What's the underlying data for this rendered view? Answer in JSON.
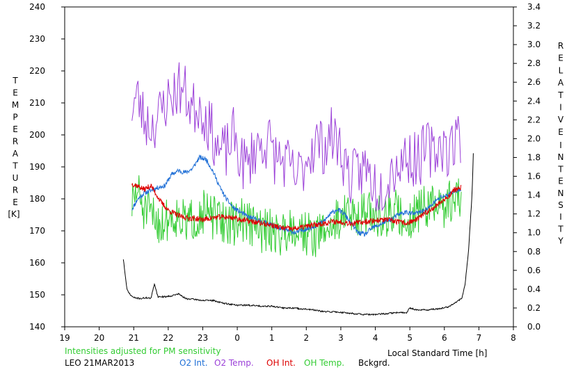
{
  "chart_data": {
    "type": "line",
    "x_axis": {
      "label": "Local Standard Time [h]",
      "tick_labels": [
        "19",
        "20",
        "21",
        "22",
        "23",
        "0",
        "1",
        "2",
        "3",
        "4",
        "5",
        "6",
        "7",
        "8"
      ],
      "range_hours": [
        19,
        32
      ]
    },
    "y_left": {
      "label_letters": [
        "T",
        "E",
        "M",
        "P",
        "E",
        "R",
        "A",
        "T",
        "U",
        "R",
        "E"
      ],
      "unit": "[K]",
      "range": [
        140,
        240
      ],
      "ticks": [
        "140",
        "150",
        "160",
        "170",
        "180",
        "190",
        "200",
        "210",
        "220",
        "230",
        "240"
      ]
    },
    "y_right": {
      "label_letters_1": [
        "R",
        "E",
        "L",
        "A",
        "T",
        "I",
        "V",
        "E"
      ],
      "label_letters_2": [
        "I",
        "N",
        "T",
        "E",
        "N",
        "S",
        "I",
        "T",
        "Y"
      ],
      "range": [
        0.0,
        3.4
      ],
      "ticks": [
        "0.0",
        "0.2",
        "0.4",
        "0.6",
        "0.8",
        "1.0",
        "1.2",
        "1.4",
        "1.6",
        "1.8",
        "2.0",
        "2.2",
        "2.4",
        "2.6",
        "2.8",
        "3.0",
        "3.2",
        "3.4"
      ]
    },
    "series": [
      {
        "name": "O2 Int.",
        "axis": "right",
        "color": "#1f6fd6",
        "points": [
          [
            20.95,
            1.25
          ],
          [
            21.1,
            1.35
          ],
          [
            21.3,
            1.42
          ],
          [
            21.5,
            1.45
          ],
          [
            21.7,
            1.48
          ],
          [
            21.9,
            1.5
          ],
          [
            22.1,
            1.62
          ],
          [
            22.3,
            1.66
          ],
          [
            22.5,
            1.64
          ],
          [
            22.7,
            1.68
          ],
          [
            22.9,
            1.8
          ],
          [
            23.1,
            1.78
          ],
          [
            23.3,
            1.65
          ],
          [
            23.5,
            1.48
          ],
          [
            23.7,
            1.35
          ],
          [
            23.9,
            1.26
          ],
          [
            24.1,
            1.22
          ],
          [
            24.3,
            1.17
          ],
          [
            24.5,
            1.15
          ],
          [
            24.7,
            1.12
          ],
          [
            24.9,
            1.1
          ],
          [
            25.1,
            1.06
          ],
          [
            25.3,
            1.04
          ],
          [
            25.5,
            1.02
          ],
          [
            25.7,
            1.0
          ],
          [
            25.9,
            1.03
          ],
          [
            26.1,
            1.05
          ],
          [
            26.3,
            1.08
          ],
          [
            26.5,
            1.12
          ],
          [
            26.7,
            1.2
          ],
          [
            26.9,
            1.25
          ],
          [
            27.1,
            1.2
          ],
          [
            27.3,
            1.1
          ],
          [
            27.5,
            1.0
          ],
          [
            27.7,
            0.98
          ],
          [
            27.9,
            1.05
          ],
          [
            28.1,
            1.08
          ],
          [
            28.3,
            1.12
          ],
          [
            28.5,
            1.15
          ],
          [
            28.7,
            1.2
          ],
          [
            28.9,
            1.22
          ],
          [
            29.1,
            1.2
          ],
          [
            29.3,
            1.22
          ],
          [
            29.5,
            1.25
          ],
          [
            29.7,
            1.32
          ],
          [
            29.9,
            1.38
          ],
          [
            30.1,
            1.4
          ],
          [
            30.3,
            1.45
          ],
          [
            30.5,
            1.44
          ]
        ]
      },
      {
        "name": "O2 Temp.",
        "axis": "left",
        "color": "#9b40d8",
        "points": [
          [
            20.95,
            209
          ],
          [
            21.1,
            212
          ],
          [
            21.3,
            205
          ],
          [
            21.5,
            203
          ],
          [
            21.7,
            205
          ],
          [
            21.9,
            210
          ],
          [
            22.1,
            212
          ],
          [
            22.3,
            215
          ],
          [
            22.5,
            213
          ],
          [
            22.7,
            208
          ],
          [
            22.9,
            210
          ],
          [
            23.1,
            205
          ],
          [
            23.3,
            200
          ],
          [
            23.5,
            194
          ],
          [
            23.7,
            195
          ],
          [
            23.9,
            200
          ],
          [
            24.1,
            192
          ],
          [
            24.3,
            190
          ],
          [
            24.5,
            196
          ],
          [
            24.7,
            197
          ],
          [
            24.9,
            198
          ],
          [
            25.1,
            193
          ],
          [
            25.3,
            192
          ],
          [
            25.5,
            190
          ],
          [
            25.7,
            186
          ],
          [
            25.9,
            190
          ],
          [
            26.1,
            195
          ],
          [
            26.3,
            198
          ],
          [
            26.5,
            196
          ],
          [
            26.7,
            200
          ],
          [
            26.9,
            198
          ],
          [
            27.1,
            192
          ],
          [
            27.3,
            186
          ],
          [
            27.5,
            188
          ],
          [
            27.7,
            190
          ],
          [
            27.9,
            186
          ],
          [
            28.1,
            183
          ],
          [
            28.3,
            186
          ],
          [
            28.5,
            190
          ],
          [
            28.7,
            191
          ],
          [
            28.9,
            194
          ],
          [
            29.1,
            192
          ],
          [
            29.3,
            193
          ],
          [
            29.5,
            196
          ],
          [
            29.7,
            194
          ],
          [
            29.9,
            198
          ],
          [
            30.1,
            195
          ],
          [
            30.3,
            198
          ],
          [
            30.5,
            200
          ]
        ]
      },
      {
        "name": "OH Int.",
        "axis": "right",
        "color": "#dd0000",
        "points": [
          [
            20.95,
            1.52
          ],
          [
            21.1,
            1.5
          ],
          [
            21.3,
            1.46
          ],
          [
            21.5,
            1.5
          ],
          [
            21.8,
            1.32
          ],
          [
            22.0,
            1.24
          ],
          [
            22.3,
            1.18
          ],
          [
            22.5,
            1.16
          ],
          [
            22.8,
            1.15
          ],
          [
            23.0,
            1.14
          ],
          [
            23.3,
            1.16
          ],
          [
            23.6,
            1.17
          ],
          [
            23.9,
            1.16
          ],
          [
            24.1,
            1.14
          ],
          [
            24.4,
            1.12
          ],
          [
            24.7,
            1.1
          ],
          [
            25.0,
            1.08
          ],
          [
            25.3,
            1.05
          ],
          [
            25.6,
            1.04
          ],
          [
            25.9,
            1.06
          ],
          [
            26.2,
            1.08
          ],
          [
            26.5,
            1.1
          ],
          [
            26.8,
            1.12
          ],
          [
            27.1,
            1.11
          ],
          [
            27.4,
            1.1
          ],
          [
            27.7,
            1.12
          ],
          [
            28.0,
            1.13
          ],
          [
            28.3,
            1.14
          ],
          [
            28.6,
            1.12
          ],
          [
            28.9,
            1.1
          ],
          [
            29.2,
            1.14
          ],
          [
            29.5,
            1.22
          ],
          [
            29.8,
            1.3
          ],
          [
            30.1,
            1.38
          ],
          [
            30.3,
            1.46
          ],
          [
            30.5,
            1.48
          ]
        ]
      },
      {
        "name": "OH Temp.",
        "axis": "left",
        "color": "#33cc33",
        "points": [
          [
            20.95,
            178
          ],
          [
            21.1,
            183
          ],
          [
            21.3,
            176
          ],
          [
            21.5,
            175
          ],
          [
            21.8,
            172
          ],
          [
            22.0,
            174
          ],
          [
            22.3,
            175
          ],
          [
            22.5,
            172
          ],
          [
            22.8,
            174
          ],
          [
            23.0,
            176
          ],
          [
            23.3,
            174
          ],
          [
            23.6,
            173
          ],
          [
            23.9,
            172
          ],
          [
            24.1,
            174
          ],
          [
            24.4,
            172
          ],
          [
            24.7,
            170
          ],
          [
            25.0,
            170
          ],
          [
            25.3,
            169
          ],
          [
            25.6,
            172
          ],
          [
            25.9,
            170
          ],
          [
            26.2,
            168
          ],
          [
            26.5,
            170
          ],
          [
            26.8,
            172
          ],
          [
            27.1,
            176
          ],
          [
            27.4,
            174
          ],
          [
            27.7,
            176
          ],
          [
            28.0,
            174
          ],
          [
            28.3,
            175
          ],
          [
            28.6,
            176
          ],
          [
            28.9,
            172
          ],
          [
            29.2,
            176
          ],
          [
            29.5,
            178
          ],
          [
            29.8,
            177
          ],
          [
            30.1,
            178
          ],
          [
            30.3,
            181
          ],
          [
            30.5,
            180
          ]
        ]
      },
      {
        "name": "Bckgrd.",
        "axis": "right",
        "color": "#000000",
        "points": [
          [
            20.7,
            0.72
          ],
          [
            20.8,
            0.4
          ],
          [
            20.9,
            0.34
          ],
          [
            21.0,
            0.31
          ],
          [
            21.2,
            0.3
          ],
          [
            21.4,
            0.31
          ],
          [
            21.5,
            0.3
          ],
          [
            21.6,
            0.46
          ],
          [
            21.7,
            0.32
          ],
          [
            21.9,
            0.32
          ],
          [
            22.1,
            0.33
          ],
          [
            22.3,
            0.35
          ],
          [
            22.5,
            0.3
          ],
          [
            22.8,
            0.29
          ],
          [
            23.0,
            0.28
          ],
          [
            23.3,
            0.28
          ],
          [
            23.6,
            0.25
          ],
          [
            24.0,
            0.23
          ],
          [
            24.3,
            0.23
          ],
          [
            24.7,
            0.22
          ],
          [
            25.0,
            0.22
          ],
          [
            25.3,
            0.2
          ],
          [
            25.6,
            0.2
          ],
          [
            25.9,
            0.19
          ],
          [
            26.2,
            0.18
          ],
          [
            26.5,
            0.16
          ],
          [
            26.8,
            0.16
          ],
          [
            27.1,
            0.15
          ],
          [
            27.4,
            0.14
          ],
          [
            27.7,
            0.13
          ],
          [
            28.0,
            0.13
          ],
          [
            28.3,
            0.14
          ],
          [
            28.6,
            0.15
          ],
          [
            28.9,
            0.15
          ],
          [
            29.0,
            0.2
          ],
          [
            29.2,
            0.18
          ],
          [
            29.5,
            0.18
          ],
          [
            29.8,
            0.19
          ],
          [
            30.1,
            0.21
          ],
          [
            30.3,
            0.25
          ],
          [
            30.5,
            0.3
          ],
          [
            30.6,
            0.45
          ],
          [
            30.7,
            0.8
          ],
          [
            30.8,
            1.4
          ],
          [
            30.85,
            1.95
          ]
        ]
      }
    ]
  },
  "footer": {
    "note": "Intensities adjusted for PM sensitivity",
    "note_color": "#33cc33",
    "station_date": "LEO 21MAR2013",
    "legend": [
      {
        "label": "O2 Int.",
        "color": "#1f6fd6"
      },
      {
        "label": "O2 Temp.",
        "color": "#9b40d8"
      },
      {
        "label": "OH Int.",
        "color": "#dd0000"
      },
      {
        "label": "OH Temp.",
        "color": "#33cc33"
      },
      {
        "label": "Bckgrd.",
        "color": "#000000"
      }
    ]
  }
}
